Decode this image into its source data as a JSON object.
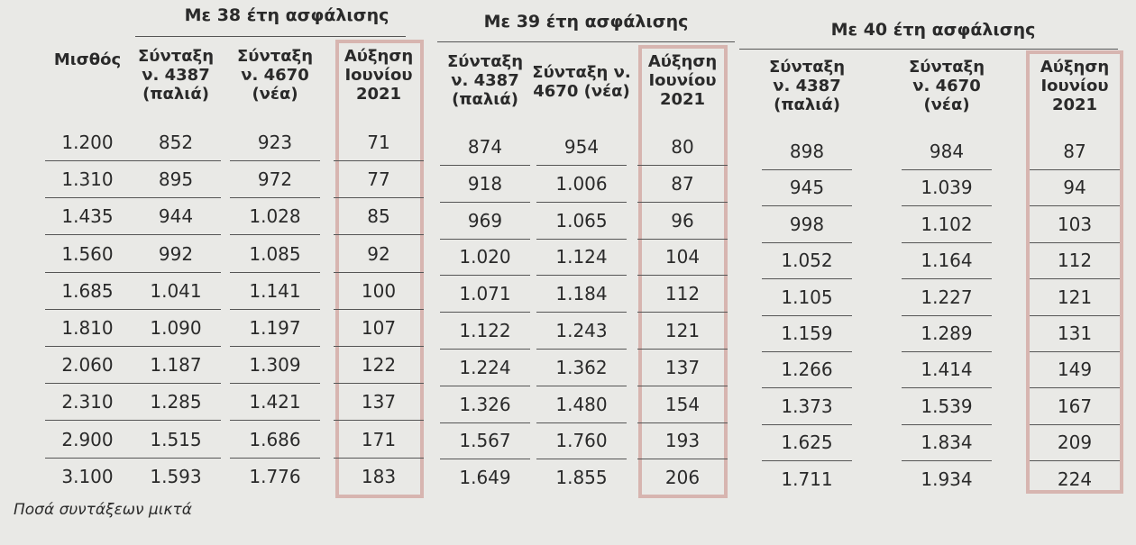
{
  "groups": [
    "Με 38 έτη ασφάλισης",
    "Με 39 έτη ασφάλισης",
    "Με 40 έτη ασφάλισης"
  ],
  "table": {
    "columns": [
      [
        "Μισθός"
      ],
      [
        "Σύνταξη",
        "ν. 4387",
        "(παλιά)"
      ],
      [
        "Σύνταξη",
        "ν. 4670",
        "(νέα)"
      ],
      [
        "Αύξηση",
        "Ιουνίου",
        "2021"
      ],
      [
        "Σύνταξη",
        "ν. 4387",
        "(παλιά)"
      ],
      [
        "Σύνταξη ν.",
        "4670 (νέα)"
      ],
      [
        "Αύξηση",
        "Ιουνίου",
        "2021"
      ],
      [
        "Σύνταξη",
        "ν. 4387",
        "(παλιά)"
      ],
      [
        "Σύνταξη",
        "ν. 4670",
        "(νέα)"
      ],
      [
        "Αύξηση",
        "Ιουνίου",
        "2021"
      ]
    ],
    "rows": [
      [
        "1.200",
        "852",
        "923",
        "71",
        "874",
        "954",
        "80",
        "898",
        "984",
        "87"
      ],
      [
        "1.310",
        "895",
        "972",
        "77",
        "918",
        "1.006",
        "87",
        "945",
        "1.039",
        "94"
      ],
      [
        "1.435",
        "944",
        "1.028",
        "85",
        "969",
        "1.065",
        "96",
        "998",
        "1.102",
        "103"
      ],
      [
        "1.560",
        "992",
        "1.085",
        "92",
        "1.020",
        "1.124",
        "104",
        "1.052",
        "1.164",
        "112"
      ],
      [
        "1.685",
        "1.041",
        "1.141",
        "100",
        "1.071",
        "1.184",
        "112",
        "1.105",
        "1.227",
        "121"
      ],
      [
        "1.810",
        "1.090",
        "1.197",
        "107",
        "1.122",
        "1.243",
        "121",
        "1.159",
        "1.289",
        "131"
      ],
      [
        "2.060",
        "1.187",
        "1.309",
        "122",
        "1.224",
        "1.362",
        "137",
        "1.266",
        "1.414",
        "149"
      ],
      [
        "2.310",
        "1.285",
        "1.421",
        "137",
        "1.326",
        "1.480",
        "154",
        "1.373",
        "1.539",
        "167"
      ],
      [
        "2.900",
        "1.515",
        "1.686",
        "171",
        "1.567",
        "1.760",
        "193",
        "1.625",
        "1.834",
        "209"
      ],
      [
        "3.100",
        "1.593",
        "1.776",
        "183",
        "1.649",
        "1.855",
        "206",
        "1.711",
        "1.934",
        "224"
      ]
    ]
  },
  "footnote": "Ποσά συντάξεων μικτά"
}
